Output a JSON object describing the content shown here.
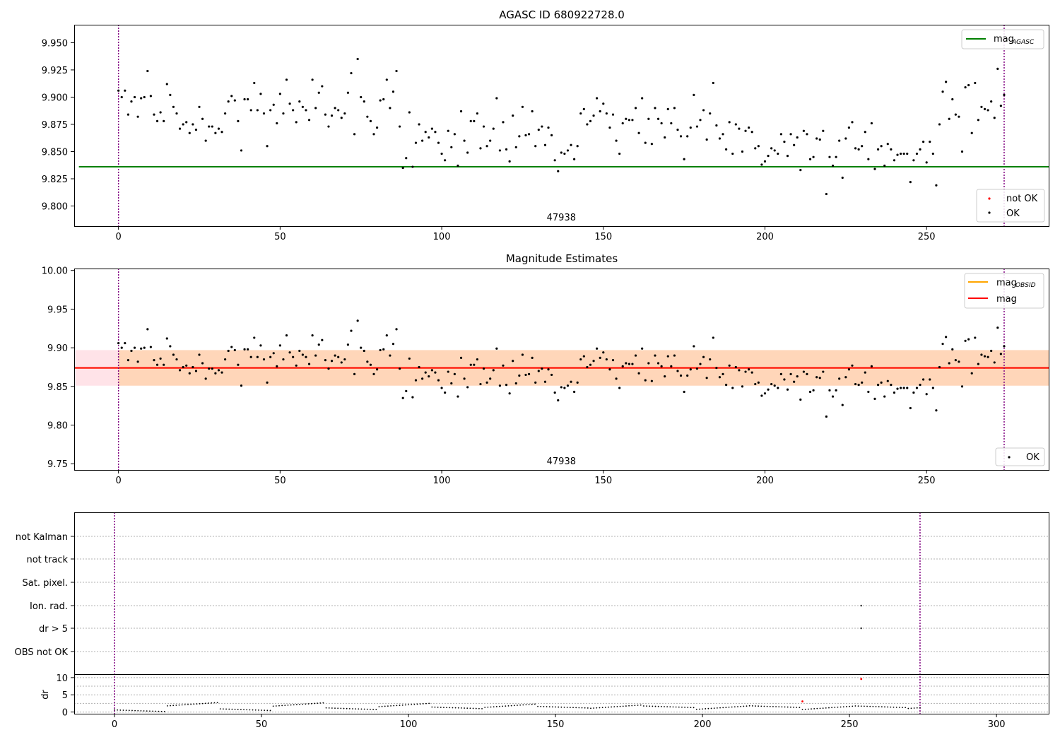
{
  "chart_data": [
    {
      "type": "scatter",
      "title": "AGASC ID 680922728.0",
      "xlim": [
        -13.7,
        288
      ],
      "ylim": [
        9.7815,
        9.9665
      ],
      "xticks": [
        0,
        50,
        100,
        150,
        200,
        250,
        300
      ],
      "yticks": [
        9.8,
        9.825,
        9.85,
        9.875,
        9.9,
        9.925,
        9.95
      ],
      "ytick_labels": [
        "9.800",
        "9.825",
        "9.850",
        "9.875",
        "9.900",
        "9.925",
        "9.950"
      ],
      "obsid_label": "47938",
      "obsid_label_x": 137,
      "vlines": [
        0,
        274
      ],
      "mag_agasc": 9.836,
      "legend_lines": [
        {
          "label": "mag",
          "sub": "AGASC",
          "color": "#008000"
        }
      ],
      "legend_points": [
        {
          "label": "not OK",
          "color": "#ff0000"
        },
        {
          "label": "OK",
          "color": "#000000"
        }
      ],
      "series": [
        {
          "name": "OK",
          "color": "#000000",
          "x": [
            0,
            1,
            2,
            3,
            4,
            5,
            6,
            7,
            8,
            9,
            10,
            11,
            12,
            13,
            14,
            15,
            16,
            17,
            18,
            19,
            20,
            21,
            22,
            23,
            24,
            25,
            26,
            27,
            28,
            29,
            30,
            31,
            32,
            33,
            34,
            35,
            36,
            37,
            38,
            39,
            40,
            41,
            42,
            43,
            44,
            45,
            46,
            47,
            48,
            49,
            50,
            51,
            52,
            53,
            54,
            55,
            56,
            57,
            58,
            59,
            60,
            61,
            62,
            63,
            64,
            65,
            66,
            67,
            68,
            69,
            70,
            71,
            72,
            73,
            74,
            75,
            76,
            77,
            78,
            79,
            80,
            81,
            82,
            83,
            84,
            85,
            86,
            87,
            88,
            89,
            90,
            91,
            92,
            93,
            94,
            95,
            96,
            97,
            98,
            99,
            100,
            101,
            102,
            103,
            104,
            105,
            106,
            107,
            108,
            109,
            110,
            111,
            112,
            113,
            114,
            115,
            116,
            117,
            118,
            119,
            120,
            121,
            122,
            123,
            124,
            125,
            126,
            127,
            128,
            129,
            130,
            131,
            132,
            133,
            134,
            135,
            136,
            137,
            138,
            139,
            140,
            141,
            142,
            143,
            144,
            145,
            146,
            147,
            148,
            149,
            150,
            151,
            152,
            153,
            154,
            155,
            156,
            157,
            158,
            159,
            160,
            161,
            162,
            163,
            164,
            165,
            166,
            167,
            168,
            169,
            170,
            171,
            172,
            173,
            174,
            175,
            176,
            177,
            178,
            179,
            180,
            181,
            182,
            183,
            184,
            185,
            186,
            187,
            188,
            189,
            190,
            191,
            192,
            193,
            194,
            195,
            196,
            197,
            198,
            199,
            200,
            201,
            202,
            203,
            204,
            205,
            206,
            207,
            208,
            209,
            210,
            211,
            212,
            213,
            214,
            215,
            216,
            217,
            218,
            219,
            220,
            221,
            222,
            223,
            224,
            225,
            226,
            227,
            228,
            229,
            230,
            231,
            232,
            233,
            234,
            235,
            236,
            237,
            238,
            239,
            240,
            241,
            242,
            243,
            244,
            245,
            246,
            247,
            248,
            249,
            250,
            251,
            252,
            253,
            254,
            255,
            256,
            257,
            258,
            259,
            260,
            261,
            262,
            263,
            264,
            265,
            266,
            267,
            268,
            269,
            270,
            271,
            272,
            273,
            274
          ],
          "y": [
            9.906,
            9.9,
            9.906,
            9.884,
            9.896,
            9.9,
            9.882,
            9.899,
            9.9,
            9.924,
            9.901,
            9.884,
            9.878,
            9.886,
            9.878,
            9.912,
            9.902,
            9.891,
            9.885,
            9.871,
            9.875,
            9.877,
            9.867,
            9.875,
            9.87,
            9.891,
            9.88,
            9.86,
            9.873,
            9.873,
            9.867,
            9.871,
            9.868,
            9.885,
            9.896,
            9.901,
            9.897,
            9.878,
            9.851,
            9.898,
            9.898,
            9.888,
            9.913,
            9.888,
            9.903,
            9.885,
            9.855,
            9.888,
            9.893,
            9.876,
            9.903,
            9.885,
            9.916,
            9.894,
            9.888,
            9.877,
            9.896,
            9.891,
            9.888,
            9.879,
            9.916,
            9.89,
            9.904,
            9.91,
            9.884,
            9.873,
            9.883,
            9.89,
            9.888,
            9.881,
            9.885,
            9.904,
            9.922,
            9.866,
            9.935,
            9.9,
            9.896,
            9.882,
            9.878,
            9.866,
            9.872,
            9.897,
            9.898,
            9.916,
            9.89,
            9.905,
            9.924,
            9.873,
            9.835,
            9.844,
            9.886,
            9.836,
            9.858,
            9.875,
            9.86,
            9.868,
            9.863,
            9.871,
            9.868,
            9.858,
            9.848,
            9.842,
            9.869,
            9.854,
            9.866,
            9.837,
            9.887,
            9.86,
            9.849,
            9.878,
            9.878,
            9.885,
            9.853,
            9.873,
            9.855,
            9.86,
            9.871,
            9.899,
            9.851,
            9.877,
            9.852,
            9.841,
            9.883,
            9.854,
            9.864,
            9.891,
            9.865,
            9.866,
            9.887,
            9.855,
            9.87,
            9.873,
            9.856,
            9.872,
            9.865,
            9.842,
            9.832,
            9.849,
            9.848,
            9.851,
            9.856,
            9.843,
            9.855,
            9.885,
            9.889,
            9.875,
            9.878,
            9.883,
            9.899,
            9.887,
            9.894,
            9.885,
            9.872,
            9.884,
            9.86,
            9.848,
            9.876,
            9.88,
            9.879,
            9.879,
            9.89,
            9.867,
            9.899,
            9.858,
            9.88,
            9.857,
            9.89,
            9.88,
            9.876,
            9.863,
            9.889,
            9.876,
            9.89,
            9.87,
            9.864,
            9.843,
            9.864,
            9.872,
            9.902,
            9.873,
            9.879,
            9.888,
            9.861,
            9.885,
            9.913,
            9.874,
            9.862,
            9.866,
            9.852,
            9.877,
            9.848,
            9.875,
            9.871,
            9.85,
            9.869,
            9.872,
            9.868,
            9.853,
            9.855,
            9.838,
            9.841,
            9.846,
            9.853,
            9.851,
            9.848,
            9.866,
            9.859,
            9.846,
            9.866,
            9.856,
            9.863,
            9.833,
            9.869,
            9.866,
            9.843,
            9.845,
            9.862,
            9.861,
            9.869,
            9.811,
            9.845,
            9.837,
            9.845,
            9.86,
            9.826,
            9.862,
            9.872,
            9.877,
            9.853,
            9.852,
            9.855,
            9.868,
            9.843,
            9.876,
            9.834,
            9.852,
            9.855,
            9.837,
            9.857,
            9.852,
            9.842,
            9.847,
            9.848,
            9.848,
            9.848,
            9.822,
            9.842,
            9.848,
            9.852,
            9.859,
            9.84,
            9.859,
            9.848,
            9.819,
            9.875,
            9.905,
            9.914,
            9.88,
            9.898,
            9.884,
            9.882,
            9.85,
            9.909,
            9.911,
            9.867,
            9.913,
            9.879,
            9.891,
            9.889,
            9.888,
            9.896,
            9.881,
            9.926,
            9.892,
            9.902
          ]
        },
        {
          "name": "not OK",
          "color": "#ff0000",
          "x": [],
          "y": []
        }
      ]
    },
    {
      "type": "scatter",
      "title": "Magnitude Estimates",
      "xlim": [
        -13.7,
        288
      ],
      "ylim": [
        9.742,
        10.0025
      ],
      "xticks": [
        0,
        50,
        100,
        150,
        200,
        250,
        300
      ],
      "yticks": [
        9.75,
        9.8,
        9.85,
        9.9,
        9.95,
        10.0
      ],
      "ytick_labels": [
        "9.75",
        "9.80",
        "9.85",
        "9.90",
        "9.95",
        "10.00"
      ],
      "obsid_label": "47938",
      "obsid_label_x": 137,
      "vlines": [
        0,
        274
      ],
      "mag": 9.874,
      "mag_band": [
        9.851,
        9.897
      ],
      "mag_obsid": 9.874,
      "legend_lines": [
        {
          "label": "mag",
          "sub": "OBSID",
          "color": "#ffa500"
        },
        {
          "label": "mag",
          "sub": "",
          "color": "#ff0000"
        }
      ],
      "legend_points": [
        {
          "label": "OK",
          "color": "#000000"
        }
      ]
    },
    {
      "type": "scatter",
      "title": "",
      "xlim": [
        -13.7,
        318
      ],
      "xticks": [
        0,
        50,
        100,
        150,
        200,
        250,
        300
      ],
      "vlines": [
        0,
        274
      ],
      "flag_labels": [
        "not Kalman",
        "not track",
        "Sat. pixel.",
        "Ion. rad.",
        "dr > 5",
        "OBS not OK"
      ],
      "flag_points": [
        {
          "flag": "Ion. rad.",
          "x": 254
        },
        {
          "flag": "dr > 5",
          "x": 254
        }
      ],
      "dr_ylabel": "dr",
      "dr_ylim": [
        -0.5,
        11
      ],
      "dr_yticks": [
        0,
        5,
        10
      ],
      "dr_red_points": [
        {
          "x": 234,
          "y": 3.1
        },
        {
          "x": 254,
          "y": 9.6
        }
      ]
    }
  ]
}
